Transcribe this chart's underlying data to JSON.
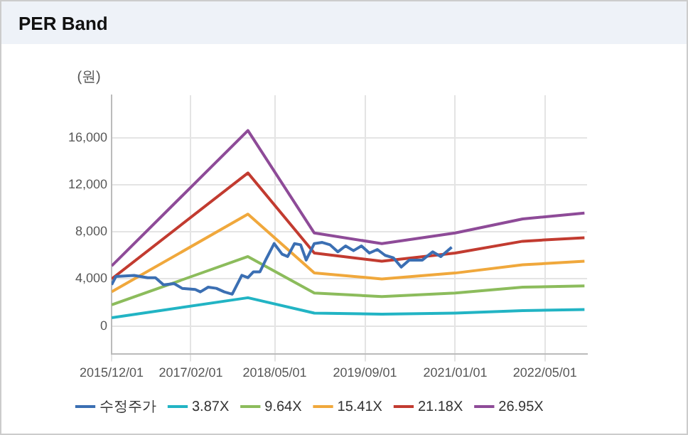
{
  "chart_data": {
    "type": "line",
    "title": "PER Band",
    "ylabel": "(원)",
    "xlim": [
      "2015-12-01",
      "2022-12-15"
    ],
    "xticks": [
      {
        "value": "2015-12-01",
        "label": "2015/12/01"
      },
      {
        "value": "2017-02-01",
        "label": "2017/02/01"
      },
      {
        "value": "2018-05-01",
        "label": "2018/05/01"
      },
      {
        "value": "2019-09-01",
        "label": "2019/09/01"
      },
      {
        "value": "2021-01-01",
        "label": "2021/01/01"
      },
      {
        "value": "2022-05-01",
        "label": "2022/05/01"
      }
    ],
    "ylim": [
      -2400,
      19600
    ],
    "yticks": [
      {
        "value": 0,
        "label": "0"
      },
      {
        "value": 4000,
        "label": "4,000"
      },
      {
        "value": 8000,
        "label": "8,000"
      },
      {
        "value": 12000,
        "label": "12,000"
      },
      {
        "value": 16000,
        "label": "16,000"
      }
    ],
    "grid": true,
    "legend": "bottom",
    "marker": "none",
    "line_style": "solid",
    "series": [
      {
        "name": "수정주가",
        "color": "#3b6fb3",
        "x": [
          "2015-12-01",
          "2015-12-24",
          "2016-04-01",
          "2016-06-13",
          "2016-07-25",
          "2016-09-07",
          "2016-11-03",
          "2016-12-16",
          "2017-02-25",
          "2017-03-25",
          "2017-05-06",
          "2017-06-19",
          "2017-08-01",
          "2017-09-13",
          "2017-11-04",
          "2017-12-07",
          "2018-01-06",
          "2018-02-10",
          "2018-03-16",
          "2018-04-28",
          "2018-06-10",
          "2018-07-10",
          "2018-08-16",
          "2018-09-18",
          "2018-10-18",
          "2018-12-01",
          "2019-01-13",
          "2019-02-24",
          "2019-04-07",
          "2019-05-19",
          "2019-07-01",
          "2019-08-13",
          "2019-09-25",
          "2019-11-07",
          "2019-12-19",
          "2020-02-01",
          "2020-03-15",
          "2020-04-27",
          "2020-07-07",
          "2020-09-01",
          "2020-10-15",
          "2020-12-13"
        ],
        "values": [
          3500,
          4200,
          4300,
          4100,
          4100,
          3500,
          3600,
          3200,
          3100,
          2900,
          3300,
          3200,
          2900,
          2700,
          4300,
          4100,
          4600,
          4600,
          5700,
          7000,
          6100,
          5900,
          7000,
          6900,
          5600,
          7000,
          7100,
          6900,
          6300,
          6800,
          6400,
          6800,
          6200,
          6500,
          6000,
          5800,
          5000,
          5600,
          5600,
          6300,
          5900,
          6700
        ]
      },
      {
        "name": "3.87X",
        "color": "#22b4c4",
        "x": [
          "2015-12-01",
          "2017-12-07",
          "2018-12-01",
          "2019-12-01",
          "2021-01-01",
          "2022-01-01",
          "2022-12-01"
        ],
        "values": [
          700,
          2400,
          1100,
          1000,
          1100,
          1300,
          1400
        ]
      },
      {
        "name": "9.64X",
        "color": "#8cbc5c",
        "x": [
          "2015-12-01",
          "2017-12-07",
          "2018-12-01",
          "2019-12-01",
          "2021-01-01",
          "2022-01-01",
          "2022-12-01"
        ],
        "values": [
          1800,
          5900,
          2800,
          2500,
          2800,
          3300,
          3400
        ]
      },
      {
        "name": "15.41X",
        "color": "#f0a83c",
        "x": [
          "2015-12-01",
          "2017-12-07",
          "2018-12-01",
          "2019-12-01",
          "2021-01-01",
          "2022-01-01",
          "2022-12-01"
        ],
        "values": [
          2900,
          9500,
          4500,
          4000,
          4500,
          5200,
          5500
        ]
      },
      {
        "name": "21.18X",
        "color": "#c23b30",
        "x": [
          "2015-12-01",
          "2017-12-07",
          "2018-12-01",
          "2019-12-01",
          "2021-01-01",
          "2022-01-01",
          "2022-12-01"
        ],
        "values": [
          4000,
          13000,
          6200,
          5500,
          6200,
          7200,
          7500
        ]
      },
      {
        "name": "26.95X",
        "color": "#8e4b98",
        "x": [
          "2015-12-01",
          "2017-12-07",
          "2018-12-01",
          "2019-12-01",
          "2021-01-01",
          "2022-01-01",
          "2022-12-01"
        ],
        "values": [
          5100,
          16600,
          7900,
          7000,
          7900,
          9100,
          9600
        ]
      }
    ]
  }
}
